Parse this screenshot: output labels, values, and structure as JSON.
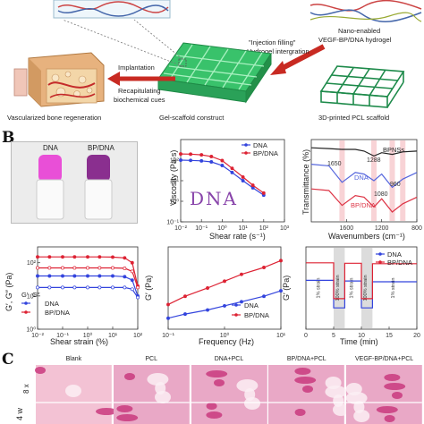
{
  "panel_a": {
    "label_nano": "Nano-enabled",
    "label_hydrogel": "VEGF-BP/DNA hydrogel",
    "label_injection": "\"Injection filling\"",
    "label_integration": "Hydrogel intergration",
    "label_implantation": "Implantation",
    "label_recap1": "Recapitulating",
    "label_recap2": "biochemical cues",
    "label_vascularized": "Vascularized bone regeneration",
    "label_construct": "Gel-scaffold construct",
    "label_scaffold": "3D-printed PCL scaffold"
  },
  "panel_b": {
    "letter": "B",
    "vial_left": "DNA",
    "vial_right": "BP/DNA"
  },
  "panel_c": {
    "letter": "C",
    "columns": [
      "Blank",
      "PCL",
      "DNA+PCL",
      "BP/DNA+PCL",
      "VEGF-BP/DNA+PCL"
    ],
    "row_time": "4 w",
    "row_mag": "8 x"
  },
  "chart_data": [
    {
      "id": "viscosity",
      "type": "line",
      "xlabel": "Shear rate (s⁻¹)",
      "ylabel": "Viscosity (Pa·s)",
      "xscale": "log",
      "yscale": "log",
      "xlim": [
        0.01,
        1000
      ],
      "ylim": [
        0.1,
        1000
      ],
      "x_ticks": [
        "10⁻²",
        "10⁻¹",
        "10⁰",
        "10¹",
        "10²",
        "10³"
      ],
      "y_ticks": [
        "10⁻¹",
        "10⁰",
        "10¹",
        "10²"
      ],
      "legend_position": "top-right",
      "series": [
        {
          "name": "DNA",
          "color": "#3344dd",
          "x": [
            0.01,
            0.03,
            0.1,
            0.3,
            1,
            3,
            10,
            30,
            100
          ],
          "y": [
            100,
            97,
            92,
            82,
            55,
            25,
            10,
            4.5,
            2
          ]
        },
        {
          "name": "BP/DNA",
          "color": "#dd2233",
          "x": [
            0.01,
            0.03,
            0.1,
            0.3,
            1,
            3,
            10,
            30,
            100
          ],
          "y": [
            200,
            195,
            180,
            150,
            95,
            40,
            15,
            6,
            2.5
          ]
        }
      ],
      "annotation": "DNA"
    },
    {
      "id": "ftir",
      "type": "line",
      "xlabel": "Wavenumbers (cm⁻¹)",
      "ylabel": "Transmittance (%)",
      "xlim": [
        2000,
        800
      ],
      "x_ticks": [
        "1600",
        "1200",
        "800"
      ],
      "legend_position": "inline",
      "series": [
        {
          "name": "BPNSs",
          "color": "#222222",
          "x": [
            2000,
            1800,
            1650,
            1500,
            1400,
            1288,
            1200,
            1080,
            960,
            800
          ],
          "y": [
            90,
            89,
            88,
            88,
            86,
            80,
            84,
            82,
            85,
            86
          ]
        },
        {
          "name": "DNA",
          "color": "#5566dd",
          "x": [
            2000,
            1800,
            1650,
            1500,
            1400,
            1288,
            1200,
            1080,
            960,
            800
          ],
          "y": [
            70,
            68,
            48,
            60,
            58,
            50,
            58,
            42,
            52,
            60
          ]
        },
        {
          "name": "BP/DNA",
          "color": "#dd3344",
          "x": [
            2000,
            1800,
            1650,
            1500,
            1400,
            1288,
            1200,
            1080,
            960,
            800
          ],
          "y": [
            40,
            38,
            20,
            32,
            30,
            18,
            28,
            12,
            22,
            30
          ]
        }
      ],
      "annotations": [
        "1650",
        "1288",
        "1080",
        "960"
      ]
    },
    {
      "id": "strain_sweep",
      "type": "line",
      "xlabel": "Shear strain (%)",
      "ylabel": "G′, G″ (Pa)",
      "xscale": "log",
      "yscale": "log",
      "x_ticks": [
        "10⁻²",
        "10⁻¹",
        "10⁰",
        "10¹",
        "10²"
      ],
      "y_ticks": [
        "10⁰",
        "10¹",
        "10²"
      ],
      "legend_position": "bottom-left",
      "legend_header": [
        "G′",
        "G″"
      ],
      "series": [
        {
          "name": "DNA G′",
          "color": "#3344dd",
          "x": [
            0.01,
            0.03,
            0.1,
            0.3,
            1,
            3,
            10,
            30,
            60,
            100
          ],
          "y": [
            40,
            40,
            40,
            40,
            40,
            40,
            40,
            38,
            30,
            10
          ]
        },
        {
          "name": "DNA G″",
          "color": "#3344dd",
          "x": [
            0.01,
            0.03,
            0.1,
            0.3,
            1,
            3,
            10,
            30,
            60,
            100
          ],
          "y": [
            18,
            18,
            18,
            18,
            18,
            18,
            18,
            18,
            16,
            9
          ]
        },
        {
          "name": "BP/DNA G′",
          "color": "#dd2233",
          "x": [
            0.01,
            0.03,
            0.1,
            0.3,
            1,
            3,
            10,
            30,
            60,
            100
          ],
          "y": [
            150,
            150,
            150,
            150,
            150,
            150,
            148,
            140,
            100,
            20
          ]
        },
        {
          "name": "BP/DNA G″",
          "color": "#dd2233",
          "x": [
            0.01,
            0.03,
            0.1,
            0.3,
            1,
            3,
            10,
            30,
            60,
            100
          ],
          "y": [
            70,
            70,
            70,
            70,
            70,
            70,
            70,
            68,
            55,
            18
          ]
        }
      ],
      "legend": [
        "DNA",
        "BP/DNA"
      ]
    },
    {
      "id": "frequency_sweep",
      "type": "line",
      "xlabel": "Frequency (Hz)",
      "ylabel": "G′ (Pa)",
      "xscale": "log",
      "x_ticks": [
        "10⁻¹",
        "10⁰",
        "10¹"
      ],
      "legend_position": "bottom-right",
      "series": [
        {
          "name": "DNA",
          "color": "#3344dd",
          "x": [
            0.1,
            0.2,
            0.5,
            1,
            2,
            5,
            10
          ],
          "y": [
            40,
            55,
            70,
            85,
            100,
            120,
            140
          ]
        },
        {
          "name": "BP/DNA",
          "color": "#dd2233",
          "x": [
            0.1,
            0.2,
            0.5,
            1,
            2,
            5,
            10
          ],
          "y": [
            90,
            120,
            150,
            175,
            200,
            225,
            250
          ]
        }
      ]
    },
    {
      "id": "recovery",
      "type": "line",
      "xlabel": "Time (min)",
      "ylabel": "G′ (Pa)",
      "xlim": [
        0,
        20
      ],
      "x_ticks": [
        "0",
        "5",
        "10",
        "15",
        "20"
      ],
      "legend_position": "top-right",
      "strain_labels": [
        "1% strain",
        "100% strain",
        "1% strain",
        "100% strain",
        "1% strain"
      ],
      "series": [
        {
          "name": "DNA",
          "color": "#3344dd",
          "x": [
            0,
            5,
            5,
            7,
            7,
            10,
            10,
            12,
            12,
            20
          ],
          "y": [
            40,
            40,
            5,
            5,
            38,
            38,
            5,
            5,
            36,
            36
          ]
        },
        {
          "name": "BP/DNA",
          "color": "#dd2233",
          "x": [
            0,
            5,
            5,
            7,
            7,
            10,
            10,
            12,
            12,
            20
          ],
          "y": [
            150,
            150,
            10,
            10,
            145,
            145,
            10,
            10,
            140,
            140
          ]
        }
      ]
    }
  ]
}
